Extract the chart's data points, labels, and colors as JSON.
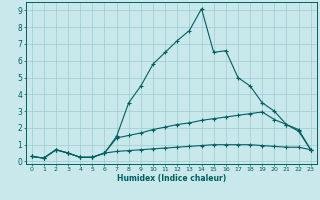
{
  "xlabel": "Humidex (Indice chaleur)",
  "background_color": "#c8e8ec",
  "grid_color": "#9fccd2",
  "line_color": "#005f5f",
  "xlim": [
    -0.5,
    23.5
  ],
  "ylim": [
    -0.15,
    9.5
  ],
  "xticks": [
    0,
    1,
    2,
    3,
    4,
    5,
    6,
    7,
    8,
    9,
    10,
    11,
    12,
    13,
    14,
    15,
    16,
    17,
    18,
    19,
    20,
    21,
    22,
    23
  ],
  "yticks": [
    0,
    1,
    2,
    3,
    4,
    5,
    6,
    7,
    8,
    9
  ],
  "line1_x": [
    0,
    1,
    2,
    3,
    4,
    5,
    6,
    7,
    8,
    9,
    10,
    11,
    12,
    13,
    14,
    15,
    16,
    17,
    18,
    19,
    20,
    21,
    22,
    23
  ],
  "line1_y": [
    0.3,
    0.2,
    0.7,
    0.5,
    0.25,
    0.25,
    0.5,
    1.5,
    3.5,
    4.5,
    5.8,
    6.5,
    7.2,
    7.8,
    9.1,
    6.5,
    6.6,
    5.0,
    4.5,
    3.5,
    3.0,
    2.2,
    1.8,
    0.7
  ],
  "line2_x": [
    0,
    1,
    2,
    3,
    4,
    5,
    6,
    7,
    8,
    9,
    10,
    11,
    12,
    13,
    14,
    15,
    16,
    17,
    18,
    19,
    20,
    21,
    22,
    23
  ],
  "line2_y": [
    0.3,
    0.2,
    0.7,
    0.5,
    0.25,
    0.25,
    0.5,
    1.4,
    1.55,
    1.7,
    1.9,
    2.05,
    2.2,
    2.3,
    2.45,
    2.55,
    2.65,
    2.75,
    2.85,
    2.95,
    2.5,
    2.2,
    1.9,
    0.7
  ],
  "line3_x": [
    0,
    1,
    2,
    3,
    4,
    5,
    6,
    7,
    8,
    9,
    10,
    11,
    12,
    13,
    14,
    15,
    16,
    17,
    18,
    19,
    20,
    21,
    22,
    23
  ],
  "line3_y": [
    0.3,
    0.2,
    0.7,
    0.5,
    0.25,
    0.25,
    0.5,
    0.6,
    0.65,
    0.7,
    0.75,
    0.8,
    0.85,
    0.9,
    0.95,
    1.0,
    1.0,
    1.0,
    1.0,
    0.95,
    0.9,
    0.85,
    0.85,
    0.7
  ]
}
